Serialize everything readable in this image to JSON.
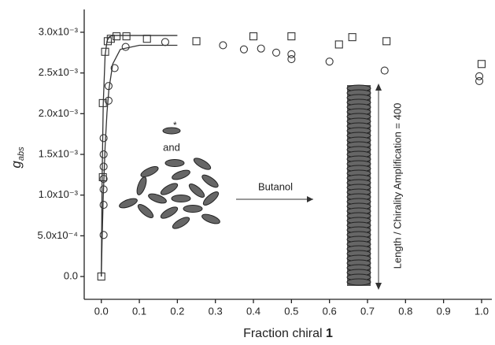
{
  "chart_data": {
    "type": "scatter",
    "y_label": "g",
    "y_label_sub": "abs",
    "x_label": "Fraction chiral",
    "x_label_bold": "1",
    "annotations": {
      "and": "and",
      "star": "*",
      "solvent": "Butanol",
      "amplification": "Length / Chirality Amplification = 400"
    },
    "xlim": [
      -0.045,
      1.027
    ],
    "ylim": [
      -0.00028,
      0.00328
    ],
    "xticks": [
      {
        "value": 0,
        "label": "0.0"
      },
      0.1,
      0.2,
      0.3,
      0.4,
      0.5,
      0.6,
      0.7,
      0.8,
      0.9,
      {
        "value": 1,
        "label": "1.0"
      }
    ],
    "yticks": [
      {
        "value": 0,
        "label": "0.0"
      },
      {
        "value": 0.0005,
        "label": "5.0x10⁻⁴"
      },
      {
        "value": 0.001,
        "label": "1.0x10⁻³"
      },
      {
        "value": 0.0015,
        "label": "1.5x10⁻³"
      },
      {
        "value": 0.002,
        "label": "2.0x10⁻³"
      },
      {
        "value": 0.0025,
        "label": "2.5x10⁻³"
      },
      {
        "value": 0.003,
        "label": "3.0x10⁻³"
      }
    ],
    "series": [
      {
        "marker": "square",
        "color": "#333333",
        "x": [
          0,
          0.004,
          0.004,
          0.01,
          0.017,
          0.025,
          0.04,
          0.066,
          0.12,
          0.25,
          0.4,
          0.5,
          0.625,
          0.66,
          0.75,
          1.0
        ],
        "values": [
          0,
          0.00122,
          0.00213,
          0.00276,
          0.00289,
          0.00292,
          0.00295,
          0.00295,
          0.00292,
          0.00289,
          0.00295,
          0.00295,
          0.00285,
          0.00294,
          0.00289,
          0.00261
        ]
      },
      {
        "marker": "circle",
        "color": "#333333",
        "x": [
          0.006,
          0.006,
          0.006,
          0.006,
          0.006,
          0.006,
          0.006,
          0.019,
          0.019,
          0.035,
          0.064,
          0.168,
          0.32,
          0.375,
          0.42,
          0.46,
          0.5,
          0.5,
          0.6,
          0.745,
          0.994,
          0.994
        ],
        "values": [
          0.00051,
          0.00088,
          0.00107,
          0.0012,
          0.00135,
          0.0015,
          0.0017,
          0.00216,
          0.00234,
          0.00256,
          0.00282,
          0.00288,
          0.00284,
          0.00279,
          0.0028,
          0.00275,
          0.00273,
          0.00267,
          0.00264,
          0.00253,
          0.00246,
          0.0024
        ]
      },
      {
        "marker": "line",
        "color": "#333333",
        "x": [
          0,
          0.002,
          0.005,
          0.01,
          0.015,
          0.02,
          0.03,
          0.05,
          0.1,
          0.2
        ],
        "values": [
          0,
          0.00116,
          0.00211,
          0.00272,
          0.00289,
          0.00294,
          0.00296,
          0.00296,
          0.00296,
          0.00296
        ]
      },
      {
        "marker": "line",
        "color": "#333333",
        "x": [
          0,
          0.002,
          0.005,
          0.01,
          0.015,
          0.02,
          0.03,
          0.05,
          0.1,
          0.2
        ],
        "values": [
          0,
          0.00044,
          0.00097,
          0.0016,
          0.00202,
          0.0023,
          0.00261,
          0.00279,
          0.00284,
          0.00284
        ]
      }
    ]
  }
}
